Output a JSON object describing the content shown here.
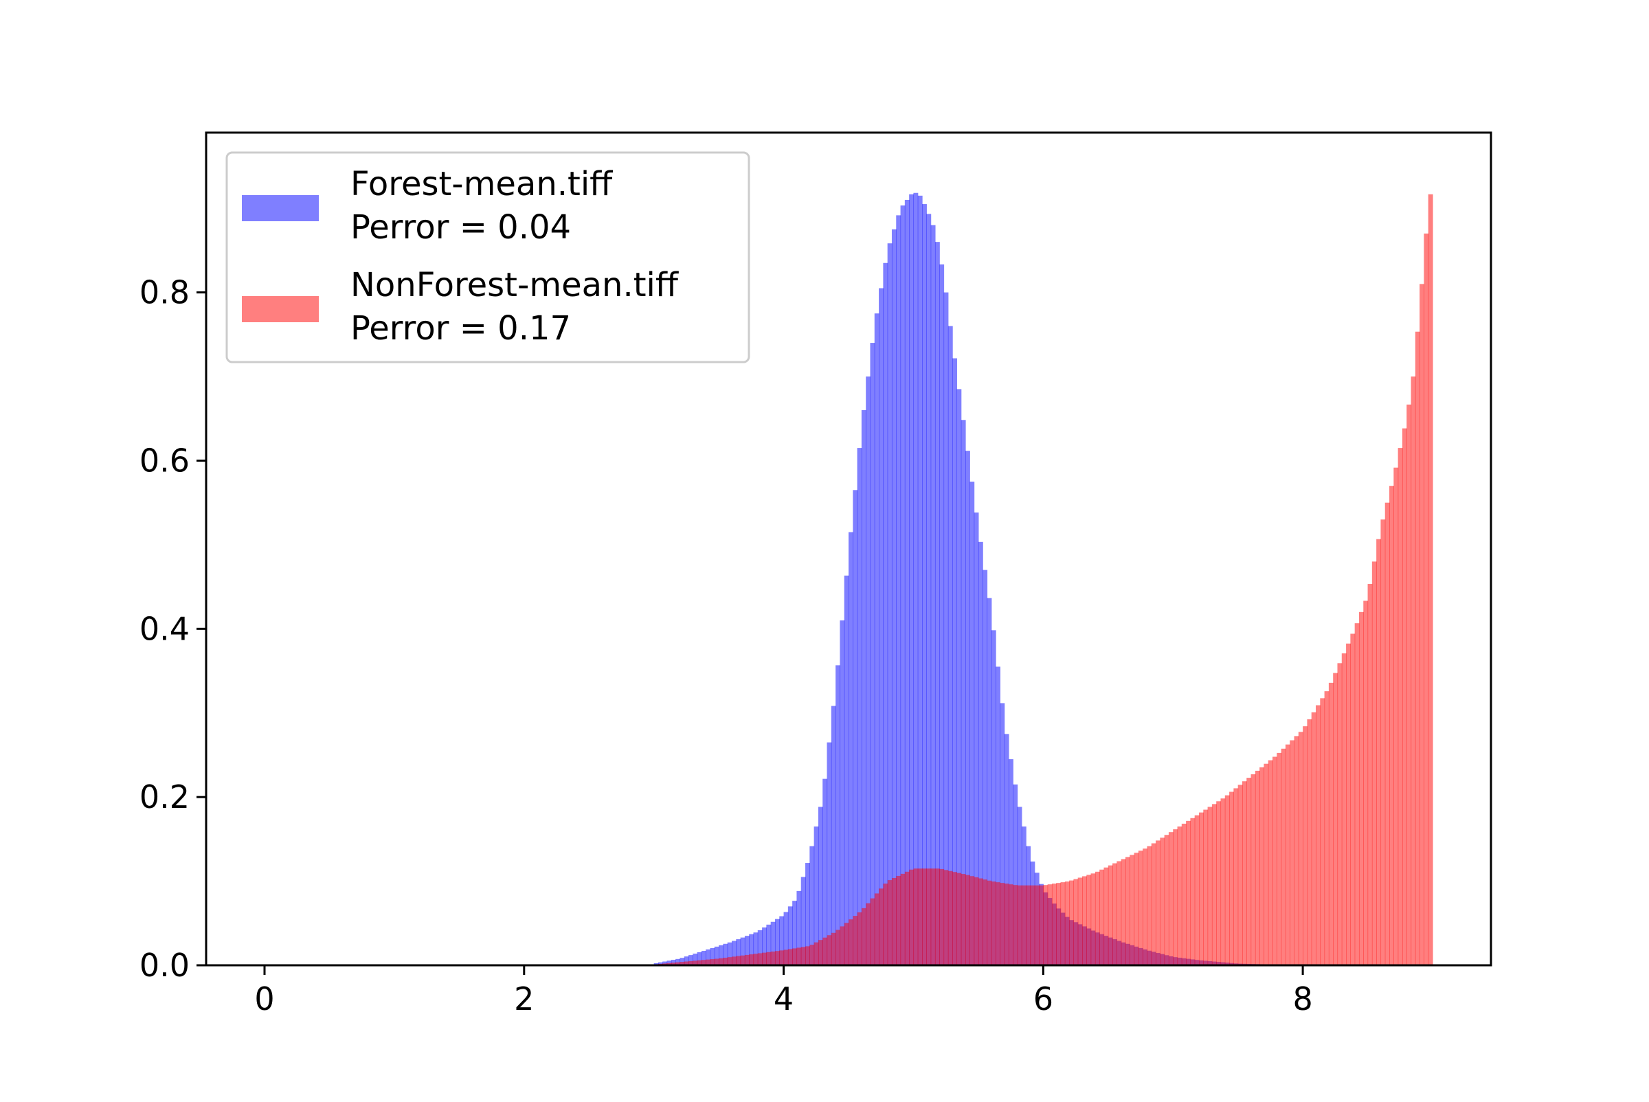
{
  "chart_data": {
    "type": "bar",
    "title": "",
    "xlabel": "",
    "ylabel": "",
    "xlim": [
      -0.45,
      9.45
    ],
    "ylim": [
      0,
      0.99
    ],
    "x_ticks": [
      0,
      2,
      4,
      6,
      8
    ],
    "x_tick_labels": [
      "0",
      "2",
      "4",
      "6",
      "8"
    ],
    "y_ticks": [
      0.0,
      0.2,
      0.4,
      0.6,
      0.8
    ],
    "y_tick_labels": [
      "0.0",
      "0.2",
      "0.4",
      "0.6",
      "0.8"
    ],
    "grid": false,
    "legend_position": "top-left",
    "bin_edges_range": [
      0,
      9
    ],
    "bin_count": 270,
    "series": [
      {
        "name": "Forest-mean.tiff",
        "legend_line2": "Perror = 0.04",
        "color": "#0000ff",
        "alpha": 0.5,
        "x": [
          3.0,
          3.2,
          3.4,
          3.6,
          3.8,
          3.9,
          4.0,
          4.1,
          4.2,
          4.3,
          4.4,
          4.5,
          4.6,
          4.7,
          4.8,
          4.9,
          5.0,
          5.05,
          5.1,
          5.15,
          5.2,
          5.25,
          5.3,
          5.4,
          5.5,
          5.6,
          5.7,
          5.8,
          5.9,
          6.0,
          6.1,
          6.2,
          6.4,
          6.6,
          6.8,
          7.0,
          7.2,
          7.5,
          8.0
        ],
        "y": [
          0.002,
          0.008,
          0.018,
          0.028,
          0.04,
          0.05,
          0.06,
          0.08,
          0.13,
          0.2,
          0.33,
          0.49,
          0.64,
          0.76,
          0.85,
          0.9,
          0.92,
          0.915,
          0.9,
          0.88,
          0.85,
          0.8,
          0.74,
          0.63,
          0.52,
          0.42,
          0.29,
          0.2,
          0.13,
          0.09,
          0.07,
          0.055,
          0.04,
          0.028,
          0.018,
          0.01,
          0.006,
          0.002,
          0.0
        ]
      },
      {
        "name": "NonForest-mean.tiff",
        "legend_line2": "Perror = 0.17",
        "color": "#ff0000",
        "alpha": 0.5,
        "x": [
          3.0,
          3.5,
          3.8,
          4.0,
          4.2,
          4.4,
          4.6,
          4.8,
          5.0,
          5.2,
          5.4,
          5.6,
          5.8,
          6.0,
          6.2,
          6.4,
          6.6,
          6.8,
          7.0,
          7.2,
          7.4,
          7.6,
          7.8,
          8.0,
          8.2,
          8.4,
          8.5,
          8.6,
          8.7,
          8.8,
          8.85,
          8.9,
          8.95,
          9.0
        ],
        "y": [
          0.001,
          0.008,
          0.014,
          0.018,
          0.023,
          0.04,
          0.065,
          0.1,
          0.115,
          0.115,
          0.108,
          0.1,
          0.095,
          0.095,
          0.1,
          0.11,
          0.125,
          0.14,
          0.16,
          0.18,
          0.2,
          0.225,
          0.25,
          0.28,
          0.33,
          0.4,
          0.44,
          0.52,
          0.58,
          0.65,
          0.7,
          0.78,
          0.87,
          0.94
        ]
      }
    ]
  }
}
